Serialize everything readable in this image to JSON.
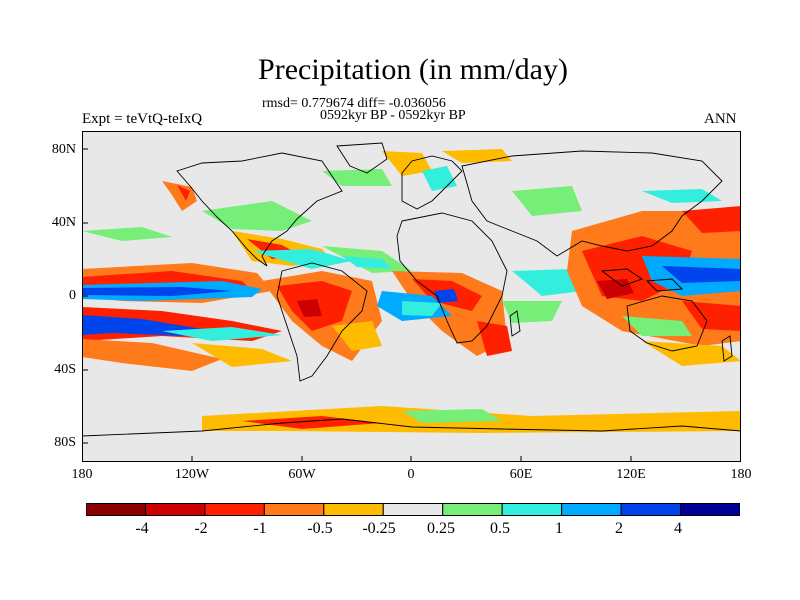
{
  "title": "Precipitation (in mm/day)",
  "stats": "rmsd= 0.779674 diff= -0.036056",
  "period": "0592kyr BP - 0592kyr BP",
  "experiment": "Expt = teVtQ-teIxQ",
  "season": "ANN",
  "lat_labels": [
    "80N",
    "40N",
    "0",
    "40S",
    "80S"
  ],
  "lon_labels": [
    "180",
    "120W",
    "60W",
    "0",
    "60E",
    "120E",
    "180"
  ],
  "colorbar": {
    "colors": [
      "#8b0000",
      "#cc0000",
      "#ff2000",
      "#ff7a1a",
      "#ffbb00",
      "#e8e8e8",
      "#77ee77",
      "#33eedd",
      "#00aaff",
      "#0044ee",
      "#000099"
    ],
    "labels": [
      "-4",
      "-2",
      "-1",
      "-0.5",
      "-0.25",
      "0.25",
      "0.5",
      "1",
      "2",
      "4"
    ]
  },
  "background_color": "#e8e8e8"
}
